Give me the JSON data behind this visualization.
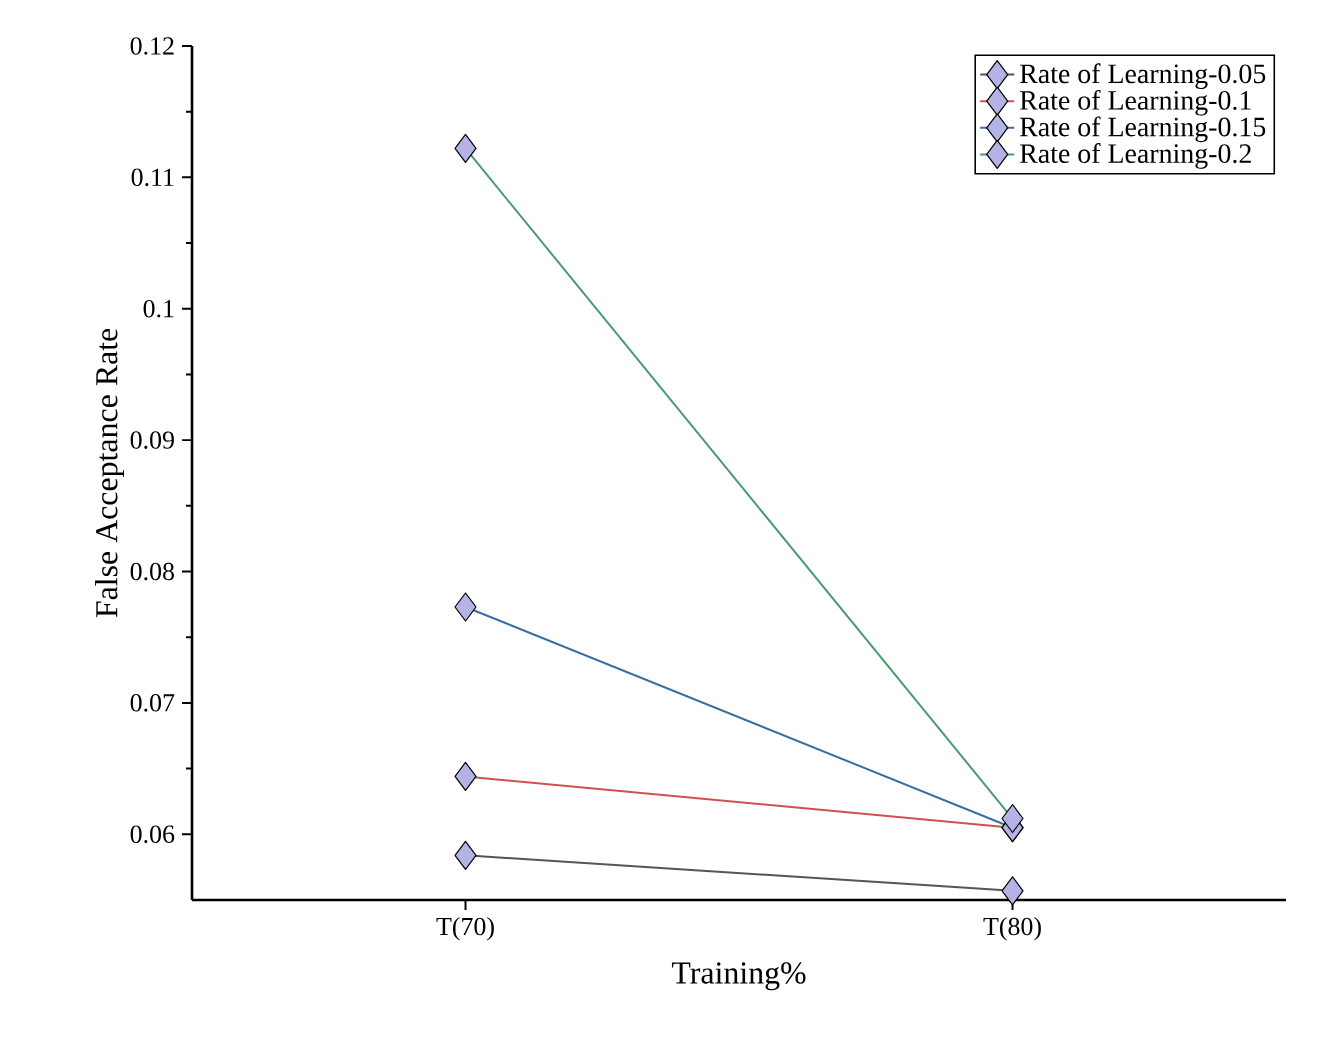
{
  "chart_data": {
    "type": "line",
    "xlabel": "Training%",
    "ylabel": "False Acceptance Rate",
    "categories": [
      "T(70)",
      "T(80)"
    ],
    "series": [
      {
        "name": "Rate of Learning-0.05",
        "color": "#555555",
        "values": [
          0.0584,
          0.0557
        ]
      },
      {
        "name": "Rate of Learning-0.1",
        "color": "#d05050",
        "values": [
          0.0644,
          0.0605
        ]
      },
      {
        "name": "Rate of Learning-0.15",
        "color": "#3a6e9e",
        "values": [
          0.0773,
          0.0605
        ]
      },
      {
        "name": "Rate of Learning-0.2",
        "color": "#4a9a70",
        "values": [
          0.1122,
          0.0612
        ]
      }
    ],
    "ylim": [
      0.055,
      0.12
    ],
    "yticks": [
      0.06,
      0.07,
      0.08,
      0.09,
      0.1,
      0.11,
      0.12
    ],
    "legend": "top right",
    "marker": "diamond",
    "line_style": "solid"
  }
}
